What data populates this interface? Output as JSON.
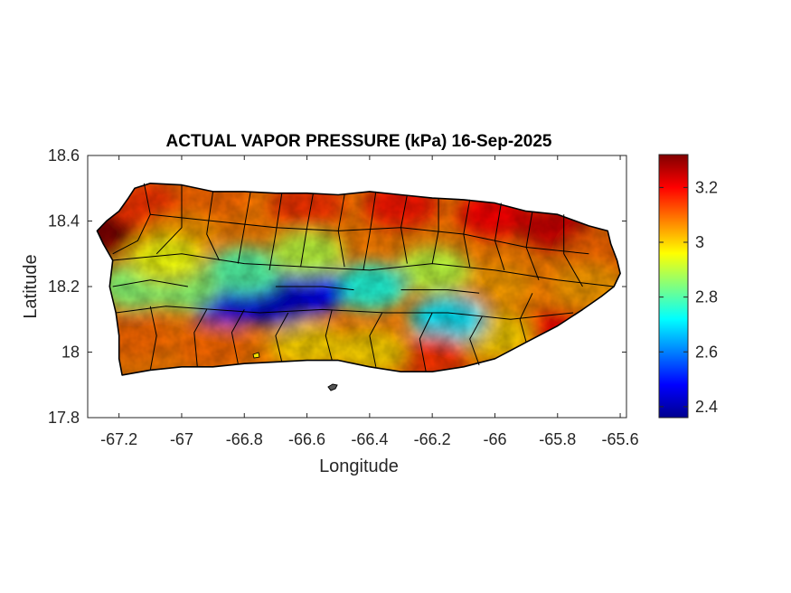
{
  "title": "ACTUAL VAPOR PRESSURE (kPa) 16-Sep-2025",
  "xlabel": "Longitude",
  "ylabel": "Latitude",
  "x_ticks": [
    "-67.2",
    "-67",
    "-66.8",
    "-66.6",
    "-66.4",
    "-66.2",
    "-66",
    "-65.8",
    "-65.6"
  ],
  "y_ticks": [
    "18.6",
    "18.4",
    "18.2",
    "18",
    "17.8"
  ],
  "colorbar_ticks": [
    "3.2",
    "3",
    "2.8",
    "2.6",
    "2.4"
  ],
  "chart_data": {
    "type": "heatmap",
    "title": "ACTUAL VAPOR PRESSURE (kPa) 16-Sep-2025",
    "xlabel": "Longitude",
    "ylabel": "Latitude",
    "xlim": [
      -67.3,
      -65.58
    ],
    "ylim": [
      17.8,
      18.6
    ],
    "x_tick_values": [
      -67.2,
      -67,
      -66.8,
      -66.6,
      -66.4,
      -66.2,
      -66,
      -65.8,
      -65.6
    ],
    "y_tick_values": [
      18.6,
      18.4,
      18.2,
      18,
      17.8
    ],
    "colorbar": {
      "colormap": "jet",
      "range": [
        2.36,
        3.32
      ],
      "tick_values": [
        3.2,
        3.0,
        2.8,
        2.6,
        2.4
      ],
      "colors": [
        "#00008f",
        "#0000ff",
        "#0080ff",
        "#00ffff",
        "#80ff80",
        "#ffff00",
        "#ff8000",
        "#ff0000",
        "#800000"
      ]
    },
    "region": "Puerto Rico",
    "grid": false,
    "field_samples": [
      {
        "lon": -67.27,
        "lat": 18.37,
        "value": 3.32
      },
      {
        "lon": -67.1,
        "lat": 18.45,
        "value": 3.15
      },
      {
        "lon": -67.0,
        "lat": 18.35,
        "value": 3.05
      },
      {
        "lon": -66.9,
        "lat": 18.48,
        "value": 3.1
      },
      {
        "lon": -66.6,
        "lat": 18.45,
        "value": 3.15
      },
      {
        "lon": -66.3,
        "lat": 18.45,
        "value": 3.18
      },
      {
        "lon": -66.0,
        "lat": 18.42,
        "value": 3.2
      },
      {
        "lon": -65.8,
        "lat": 18.38,
        "value": 3.25
      },
      {
        "lon": -65.65,
        "lat": 18.3,
        "value": 3.1
      },
      {
        "lon": -65.7,
        "lat": 18.2,
        "value": 3.05
      },
      {
        "lon": -65.8,
        "lat": 18.05,
        "value": 3.2
      },
      {
        "lon": -66.0,
        "lat": 18.05,
        "value": 3.0
      },
      {
        "lon": -66.0,
        "lat": 18.2,
        "value": 3.05
      },
      {
        "lon": -66.2,
        "lat": 18.25,
        "value": 2.9
      },
      {
        "lon": -66.15,
        "lat": 18.1,
        "value": 2.7
      },
      {
        "lon": -66.2,
        "lat": 17.98,
        "value": 3.15
      },
      {
        "lon": -66.4,
        "lat": 18.2,
        "value": 2.75
      },
      {
        "lon": -66.4,
        "lat": 18.0,
        "value": 3.0
      },
      {
        "lon": -66.6,
        "lat": 18.18,
        "value": 2.48
      },
      {
        "lon": -66.7,
        "lat": 18.15,
        "value": 2.42
      },
      {
        "lon": -66.85,
        "lat": 18.15,
        "value": 2.45
      },
      {
        "lon": -66.8,
        "lat": 18.25,
        "value": 2.8
      },
      {
        "lon": -66.6,
        "lat": 18.3,
        "value": 2.9
      },
      {
        "lon": -66.6,
        "lat": 18.02,
        "value": 3.0
      },
      {
        "lon": -66.9,
        "lat": 18.02,
        "value": 3.1
      },
      {
        "lon": -67.0,
        "lat": 18.2,
        "value": 2.85
      },
      {
        "lon": -67.15,
        "lat": 18.2,
        "value": 2.85
      },
      {
        "lon": -67.15,
        "lat": 18.05,
        "value": 3.1
      },
      {
        "lon": -67.05,
        "lat": 18.28,
        "value": 2.95
      }
    ]
  }
}
